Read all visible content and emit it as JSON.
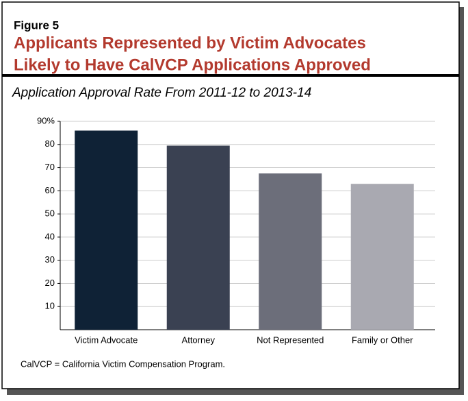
{
  "figure_label": "Figure 5",
  "chart_data": {
    "type": "bar",
    "title": [
      "Applicants Represented by Victim Advocates",
      "Likely to Have CalVCP Applications Approved"
    ],
    "subtitle": "Application Approval Rate From 2011-12 to 2013-14",
    "categories": [
      "Victim Advocate",
      "Attorney",
      "Not Represented",
      "Family or Other"
    ],
    "values": [
      86,
      79.5,
      67.5,
      63
    ],
    "colors": [
      "#0f2236",
      "#3a4152",
      "#6c6e7a",
      "#a9a9b1"
    ],
    "ylim": [
      0,
      90
    ],
    "yticks": [
      10,
      20,
      30,
      40,
      50,
      60,
      70,
      80,
      {
        "value": 90,
        "label": "90%"
      }
    ],
    "grid": true,
    "note": "CalVCP = California Victim Compensation Program."
  }
}
